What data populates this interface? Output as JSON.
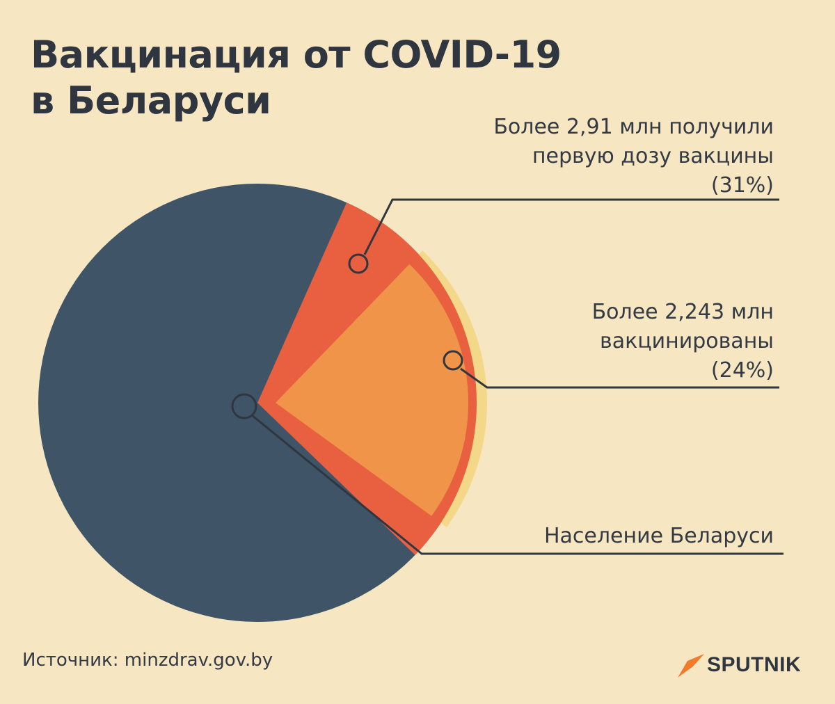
{
  "title_lines": [
    "Вакцинация от COVID-19",
    "в Беларуси"
  ],
  "chart_data": {
    "type": "pie",
    "slices": [
      {
        "label_lines": [
          "Более 2,91 млн получили",
          "первую дозу вакцины",
          "(31%)"
        ],
        "value_millions": 2.91,
        "percent": 31,
        "color": "#e8603f"
      },
      {
        "label_lines": [
          "Более 2,243 млн",
          "вакцинированы",
          "(24%)"
        ],
        "value_millions": 2.243,
        "percent": 24,
        "color": "#f09449"
      },
      {
        "label_lines": [
          "Население Беларуси"
        ],
        "percent": 100,
        "color": "#3f5567"
      }
    ],
    "highlight_color": "#f3d88a"
  },
  "source": "Источник: minzdrav.gov.by",
  "logo": {
    "text": "SPUTNIK",
    "color": "#f07b2b"
  }
}
